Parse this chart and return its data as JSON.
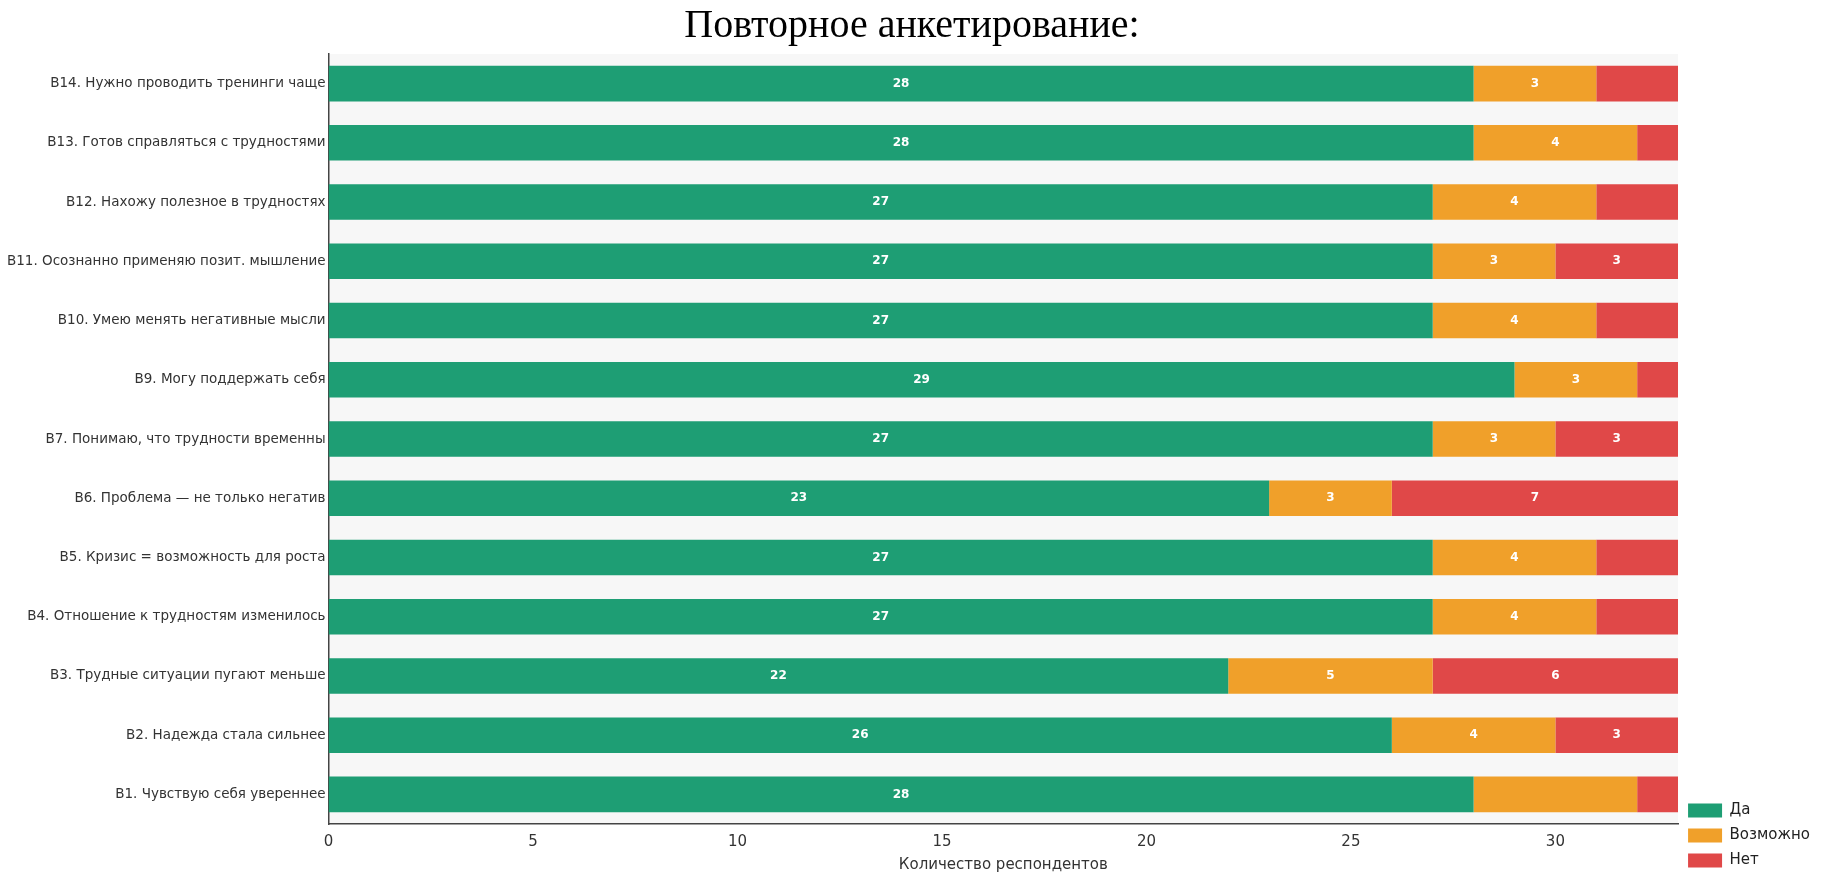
{
  "chart_data": {
    "type": "bar",
    "orientation": "horizontal",
    "stacked": true,
    "title": "Повторное анкетирование:",
    "xlabel": "Количество респондентов",
    "categories": [
      "B14. Нужно проводить тренинги чаще",
      "B13. Готов справляться с трудностями",
      "B12. Нахожу полезное в трудностях",
      "B11. Осознанно применяю позит. мышление",
      "B10. Умею менять негативные мысли",
      "B9. Могу поддержать себя",
      "B7. Понимаю, что трудности временны",
      "B6. Проблема — не только негатив",
      "B5. Кризис = возможность для роста",
      "B4. Отношение к трудностям изменилось",
      "B3. Трудные ситуации пугают меньше",
      "B2. Надежда стала сильнее",
      "B1. Чувствую себя увереннее"
    ],
    "series": [
      {
        "name": "Да",
        "color": "#1e9e74",
        "values": [
          28,
          28,
          27,
          27,
          27,
          29,
          27,
          23,
          27,
          27,
          22,
          26,
          28
        ],
        "value_labels": [
          "28",
          "28",
          "27",
          "27",
          "27",
          "29",
          "27",
          "23",
          "27",
          "27",
          "22",
          "26",
          "28"
        ]
      },
      {
        "name": "Возможно",
        "color": "#f0a02a",
        "values": [
          3,
          4,
          4,
          3,
          4,
          3,
          3,
          3,
          4,
          4,
          5,
          4,
          4
        ],
        "value_labels": [
          "3",
          "4",
          "4",
          "3",
          "4",
          "3",
          "3",
          "3",
          "4",
          "4",
          "5",
          "4",
          null
        ]
      },
      {
        "name": "Нет",
        "color": "#e04848",
        "values": [
          2,
          1,
          2,
          3,
          2,
          1,
          3,
          7,
          2,
          2,
          6,
          3,
          1
        ],
        "value_labels": [
          null,
          null,
          null,
          "3",
          null,
          null,
          "3",
          "7",
          null,
          null,
          "6",
          "3",
          null
        ]
      }
    ],
    "xlim": [
      0,
      33
    ],
    "xticks": [
      0,
      5,
      10,
      15,
      20,
      25,
      30
    ],
    "grid": false,
    "legend": "right"
  }
}
